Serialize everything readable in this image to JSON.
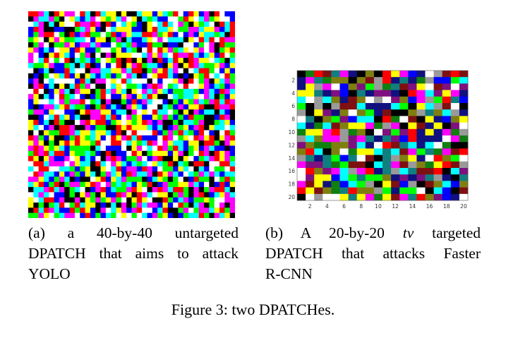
{
  "figure_a": {
    "grid_size": 40,
    "palette": [
      "#ff0000",
      "#00ff00",
      "#0000ff",
      "#ffff00",
      "#ff00ff",
      "#00ffff",
      "#ffffff",
      "#000000"
    ]
  },
  "figure_b": {
    "grid_size": 20,
    "palette": [
      "#ff0000",
      "#00ff00",
      "#0000ff",
      "#ffff00",
      "#ff00ff",
      "#00ffff",
      "#ffffff",
      "#000000",
      "#7f1010",
      "#107f10",
      "#10107f",
      "#7f7f10",
      "#7f107f",
      "#107f7f",
      "#9a9a9a"
    ],
    "x_ticks": [
      "2",
      "4",
      "6",
      "8",
      "10",
      "12",
      "14",
      "16",
      "18",
      "20"
    ],
    "y_ticks": [
      "2",
      "4",
      "6",
      "8",
      "10",
      "12",
      "14",
      "16",
      "18",
      "20"
    ]
  },
  "caption_a": {
    "line1": "(a) a 40-by-40 untargeted",
    "line2_sc": "DPATCH",
    "line2_rest": " that aims to attack",
    "line3": "YOLO"
  },
  "caption_b": {
    "line1_pre": "(b) A 20-by-20 ",
    "line1_math": "tv",
    "line1_post": " targeted",
    "line2_sc": "DPATCH",
    "line2_rest": " that attacks Faster",
    "line3": "R-CNN"
  },
  "figure_caption": {
    "pre": "Figure 3: two ",
    "sc": "DPATCH",
    "post": "es."
  }
}
